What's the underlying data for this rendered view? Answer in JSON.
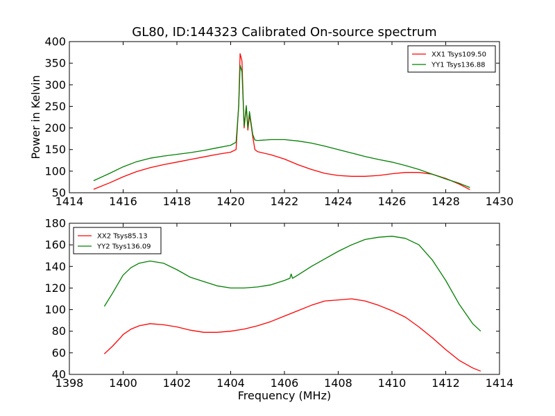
{
  "chart_data": [
    {
      "type": "line",
      "title": "GL80, ID:144323 Calibrated On-source spectrum",
      "xlabel": "",
      "ylabel": "Power in Kelvin",
      "xlim": [
        1414,
        1430
      ],
      "ylim": [
        50,
        400
      ],
      "xticks": [
        1414,
        1416,
        1418,
        1420,
        1422,
        1424,
        1426,
        1428,
        1430
      ],
      "yticks": [
        50,
        100,
        150,
        200,
        250,
        300,
        350,
        400
      ],
      "legend_position": "top-right",
      "series": [
        {
          "name": "XX1 Tsys109.50",
          "color": "#ff0000",
          "x": [
            1414.9,
            1415.5,
            1416.0,
            1416.5,
            1417.0,
            1417.5,
            1418.0,
            1418.5,
            1419.0,
            1419.5,
            1420.0,
            1420.2,
            1420.3,
            1420.35,
            1420.42,
            1420.5,
            1420.58,
            1420.64,
            1420.7,
            1420.76,
            1420.82,
            1420.9,
            1421.0,
            1421.5,
            1422.0,
            1422.5,
            1423.0,
            1423.5,
            1424.0,
            1424.5,
            1425.0,
            1425.5,
            1426.0,
            1426.5,
            1427.0,
            1427.5,
            1428.0,
            1428.5,
            1428.9
          ],
          "values": [
            58,
            73,
            87,
            99,
            108,
            115,
            121,
            127,
            133,
            139,
            144,
            150,
            255,
            372,
            355,
            200,
            248,
            195,
            230,
            208,
            180,
            150,
            145,
            138,
            128,
            115,
            104,
            95,
            90,
            88,
            88,
            90,
            94,
            97,
            97,
            93,
            83,
            70,
            57
          ]
        },
        {
          "name": "YY1 Tsys136.88",
          "color": "#008000",
          "x": [
            1414.9,
            1415.5,
            1416.0,
            1416.5,
            1417.0,
            1417.5,
            1418.0,
            1418.5,
            1419.0,
            1419.5,
            1420.0,
            1420.2,
            1420.3,
            1420.35,
            1420.42,
            1420.5,
            1420.58,
            1420.64,
            1420.7,
            1420.76,
            1420.82,
            1420.9,
            1421.0,
            1421.5,
            1422.0,
            1422.5,
            1423.0,
            1423.5,
            1424.0,
            1424.5,
            1425.0,
            1425.5,
            1426.0,
            1426.5,
            1427.0,
            1427.5,
            1428.0,
            1428.5,
            1428.9
          ],
          "values": [
            78,
            95,
            110,
            122,
            130,
            135,
            139,
            143,
            148,
            154,
            160,
            167,
            250,
            345,
            330,
            205,
            252,
            200,
            238,
            212,
            185,
            172,
            171,
            173,
            173,
            170,
            165,
            158,
            150,
            142,
            134,
            127,
            121,
            113,
            104,
            93,
            82,
            72,
            62
          ]
        }
      ]
    },
    {
      "type": "line",
      "title": "",
      "xlabel": "Frequency (MHz)",
      "ylabel": "",
      "xlim": [
        1398,
        1414
      ],
      "ylim": [
        40,
        180
      ],
      "xticks": [
        1398,
        1400,
        1402,
        1404,
        1406,
        1408,
        1410,
        1412,
        1414
      ],
      "yticks": [
        40,
        60,
        80,
        100,
        120,
        140,
        160,
        180
      ],
      "legend_position": "top-left",
      "series": [
        {
          "name": "XX2 Tsys85.13",
          "color": "#ff0000",
          "x": [
            1399.3,
            1399.6,
            1399.9,
            1400.0,
            1400.3,
            1400.6,
            1401.0,
            1401.5,
            1402.0,
            1402.5,
            1403.0,
            1403.5,
            1404.0,
            1404.5,
            1405.0,
            1405.5,
            1406.0,
            1406.5,
            1407.0,
            1407.5,
            1408.0,
            1408.5,
            1409.0,
            1409.5,
            1410.0,
            1410.5,
            1411.0,
            1411.5,
            1412.0,
            1412.5,
            1413.0,
            1413.3
          ],
          "values": [
            59,
            66,
            74,
            77,
            82,
            85,
            87,
            86,
            84,
            81,
            79,
            79,
            80,
            82,
            85,
            89,
            94,
            99,
            104,
            108,
            109,
            110,
            108,
            104,
            99,
            93,
            84,
            74,
            63,
            53,
            46,
            43
          ]
        },
        {
          "name": "YY2 Tsys136.09",
          "color": "#008000",
          "x": [
            1399.3,
            1399.6,
            1400.0,
            1400.3,
            1400.6,
            1401.0,
            1401.5,
            1402.0,
            1402.5,
            1403.0,
            1403.5,
            1404.0,
            1404.5,
            1405.0,
            1405.5,
            1406.0,
            1406.2,
            1406.25,
            1406.3,
            1406.5,
            1407.0,
            1407.5,
            1408.0,
            1408.5,
            1409.0,
            1409.5,
            1410.0,
            1410.5,
            1411.0,
            1411.5,
            1412.0,
            1412.5,
            1413.0,
            1413.3
          ],
          "values": [
            103,
            115,
            132,
            139,
            143,
            145,
            143,
            137,
            130,
            126,
            122,
            120,
            120,
            121,
            123,
            127,
            129,
            133,
            129,
            132,
            140,
            147,
            154,
            160,
            165,
            167,
            168,
            166,
            160,
            146,
            127,
            105,
            87,
            80
          ]
        }
      ]
    }
  ]
}
